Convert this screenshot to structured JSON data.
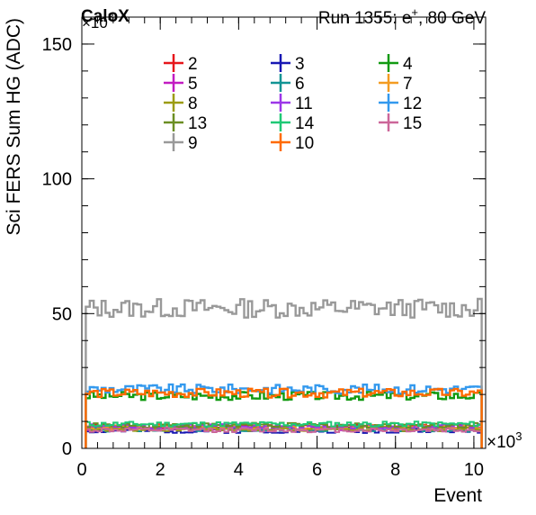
{
  "chart_data": {
    "type": "line",
    "title_left": "CaloX",
    "title_right_prefix": "Run 1355: e",
    "title_right_sup": "+",
    "title_right_suffix": ", 80 GeV",
    "xlabel": "Event",
    "ylabel": "Sci FERS Sum HG (ADC)",
    "x_multiplier_base": "×10",
    "x_multiplier_exp": "3",
    "y_multiplier_base": "×10",
    "y_multiplier_exp": "3",
    "xlim": [
      0,
      10.3
    ],
    "ylim": [
      0,
      160
    ],
    "x_ticks": [
      0,
      2,
      4,
      6,
      8,
      10
    ],
    "x_tick_labels": [
      "0",
      "2",
      "4",
      "6",
      "8",
      "10"
    ],
    "y_ticks": [
      0,
      50,
      100,
      150
    ],
    "y_tick_labels": [
      "0",
      "50",
      "100",
      "150"
    ],
    "x_range_data": [
      0.1,
      10.2
    ],
    "grid": false,
    "legend": "top",
    "series": [
      {
        "name": "2",
        "color": "#e6161b",
        "level": 8.0
      },
      {
        "name": "3",
        "color": "#1717b3",
        "level": 6.5
      },
      {
        "name": "4",
        "color": "#129a12",
        "level": 19.5
      },
      {
        "name": "5",
        "color": "#c21cc2",
        "level": 7.5
      },
      {
        "name": "6",
        "color": "#119494",
        "level": 7.0
      },
      {
        "name": "7",
        "color": "#f39c22",
        "level": 7.8
      },
      {
        "name": "8",
        "color": "#9c9c10",
        "level": 7.2
      },
      {
        "name": "11",
        "color": "#9c36e8",
        "level": 8.2
      },
      {
        "name": "12",
        "color": "#3399ee",
        "level": 22.0
      },
      {
        "name": "13",
        "color": "#6b8e23",
        "level": 8.6
      },
      {
        "name": "14",
        "color": "#1fc875",
        "level": 9.0
      },
      {
        "name": "15",
        "color": "#cc6699",
        "level": 6.8
      },
      {
        "name": "9",
        "color": "#999999",
        "level": 52.0
      },
      {
        "name": "10",
        "color": "#ff6a00",
        "level": 20.5
      }
    ]
  }
}
